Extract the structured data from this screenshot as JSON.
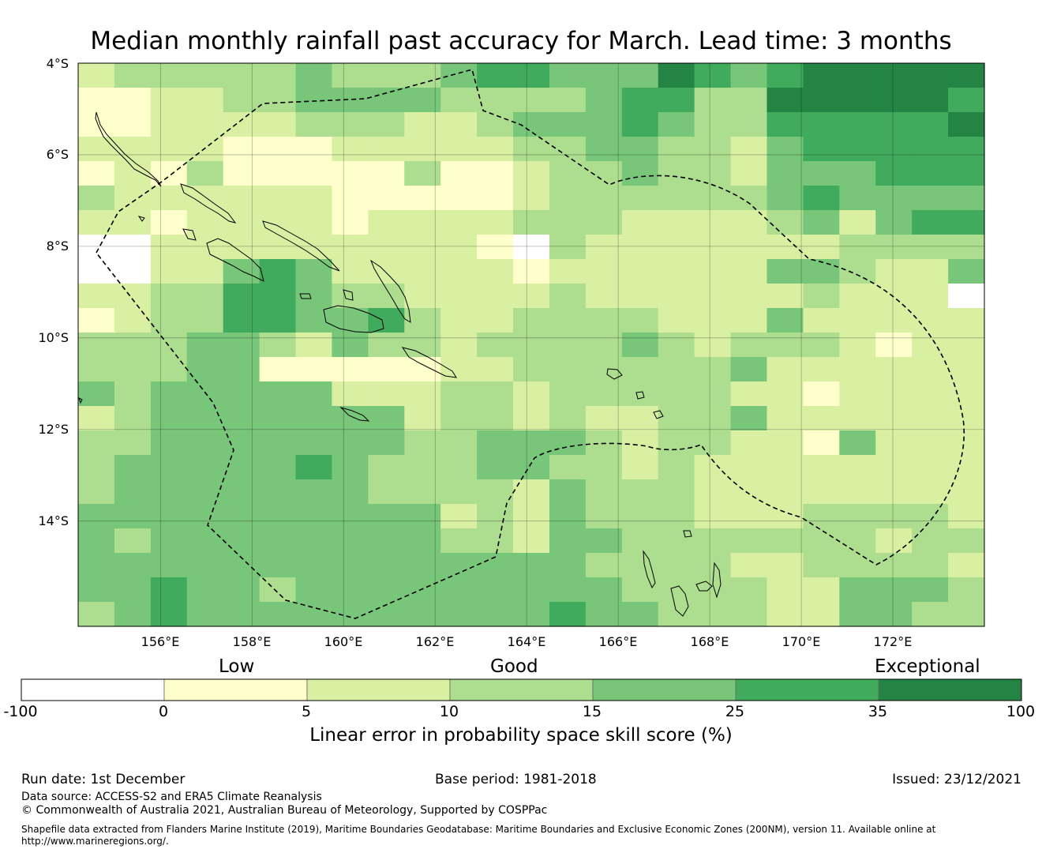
{
  "title": "Median monthly rainfall past accuracy for March. Lead time: 3 months",
  "map": {
    "latitude_labels": [
      "4°S",
      "6°S",
      "8°S",
      "10°S",
      "12°S",
      "14°S"
    ],
    "longitude_labels": [
      "156°E",
      "158°E",
      "160°E",
      "162°E",
      "164°E",
      "166°E",
      "168°E",
      "170°E",
      "172°E"
    ],
    "lon_range": [
      154.2,
      174.0
    ],
    "lat_range": [
      -16.3,
      -4.0
    ],
    "grid_step_deg": 0.84,
    "region_outline": "dashed boundary (Solomon Islands EEZ)"
  },
  "legend": {
    "categories": [
      {
        "label": "Low"
      },
      {
        "label": "Good"
      },
      {
        "label": "Exceptional"
      }
    ],
    "bins": [
      {
        "from": -100,
        "to": 0,
        "color": "#ffffff"
      },
      {
        "from": 0,
        "to": 5,
        "color": "#ffffcc"
      },
      {
        "from": 5,
        "to": 10,
        "color": "#d9f0a3"
      },
      {
        "from": 10,
        "to": 15,
        "color": "#addd8e"
      },
      {
        "from": 15,
        "to": 25,
        "color": "#78c679"
      },
      {
        "from": 25,
        "to": 35,
        "color": "#41ab5d"
      },
      {
        "from": 35,
        "to": 100,
        "color": "#238443"
      }
    ],
    "ticks": [
      "-100",
      "0",
      "5",
      "10",
      "15",
      "25",
      "35",
      "100"
    ],
    "axis_label": "Linear error in probability space skill score (%)"
  },
  "footer": {
    "run_date": "Run date: 1st December",
    "base_period": "Base period: 1981-2018",
    "issued": "Issued: 23/12/2021",
    "data_source": "Data source: ACCESS-S2 and ERA5 Climate Reanalysis",
    "copyright": "© Commonwealth of Australia 2021, Australian Bureau of Meteorology, Supported by COSPPac",
    "shapefile_line1": "Shapefile data extracted from Flanders Marine Institute (2019), Maritime Boundaries Geodatabase: Maritime Boundaries and Exclusive Economic Zones (200NM), version 11. Available online at",
    "shapefile_line2": "http://www.marineregions.org/."
  },
  "grid_rows": [
    "2333334333455444654566666",
    "1122334444333345533666665",
    "1122223332234445433555556",
    "2222111222223344332455555",
    "1213111113112334332444555",
    "3222222111112333333454444",
    "2212222122223332222342455",
    "0022222222210322222223333",
    "0022454222221222222443224",
    "2233554332222322222232220",
    "1233554453223333222422222",
    "3334432433233334323332122",
    "3334411111223333334222222",
    "4344444222332333332212222",
    "2344444442332322334222222",
    "3344444443344432332214222",
    "3444445433344332322222222",
    "3444444433332433322222222",
    "4444444444232433322233332",
    "4344444444332443333333233",
    "4444444444444433332233332",
    "4454434444444443333224443",
    "3454444444444544333224433"
  ]
}
